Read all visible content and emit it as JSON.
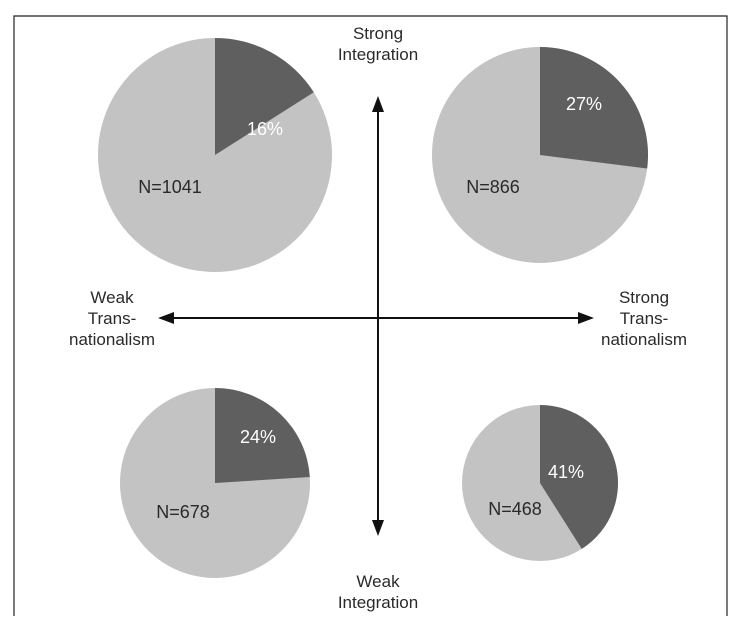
{
  "chart_data": {
    "type": "pie",
    "axes": {
      "vertical": {
        "top": [
          "Strong",
          "Integration"
        ],
        "bottom": [
          "Weak",
          "Integration"
        ]
      },
      "horizontal": {
        "left": [
          "Weak",
          "Trans-",
          "nationalism"
        ],
        "right": [
          "Strong",
          "Trans-",
          "nationalism"
        ]
      }
    },
    "pies": [
      {
        "quadrant": "strong-integration-weak-transnationalism",
        "n_label": "N=1041",
        "n": 1041,
        "share_label": "16%",
        "share": 16
      },
      {
        "quadrant": "strong-integration-strong-transnationalism",
        "n_label": "N=866",
        "n": 866,
        "share_label": "27%",
        "share": 27
      },
      {
        "quadrant": "weak-integration-weak-transnationalism",
        "n_label": "N=678",
        "n": 678,
        "share_label": "24%",
        "share": 24
      },
      {
        "quadrant": "weak-integration-strong-transnationalism",
        "n_label": "N=468",
        "n": 468,
        "share_label": "41%",
        "share": 41
      }
    ],
    "colors": {
      "share": "#5f5f5f",
      "rest": "#c3c3c3",
      "axis": "#111111"
    }
  }
}
